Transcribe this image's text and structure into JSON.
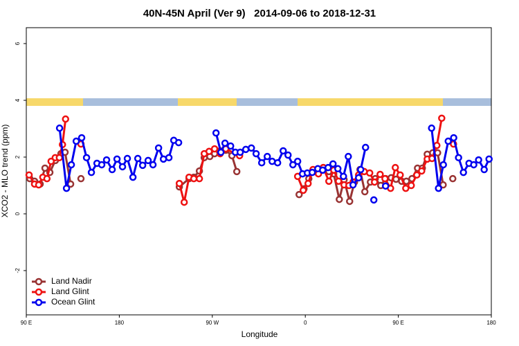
{
  "chart_data": {
    "type": "line",
    "title": "40N-45N April (Ver 9)   2014-09-06 to 2018-12-31",
    "xlabel": "Longitude",
    "ylabel": "XCO2 - MLO trend (ppm)",
    "xlim": [
      90,
      540
    ],
    "ylim": [
      -3.56,
      6.56
    ],
    "xticks": [
      {
        "value": 90,
        "label": "90 E"
      },
      {
        "value": 180,
        "label": "180"
      },
      {
        "value": 270,
        "label": "90 W"
      },
      {
        "value": 360,
        "label": "0"
      },
      {
        "value": 450,
        "label": "90 E"
      },
      {
        "value": 540,
        "label": "180"
      }
    ],
    "yticks": [
      -2,
      0,
      2,
      4,
      6
    ],
    "legend": "bottom-left",
    "series": [
      {
        "name": "Land Nadir",
        "color": "#993333",
        "x": [
          93.4,
          98,
          103.4,
          108.1,
          112.8,
          118.1,
          123.5,
          127.5,
          132.9,
          null,
          142.9,
          null,
          238.1,
          247.5,
          252.1,
          257.5,
          262.2,
          267.6,
          272.2,
          277.6,
          283,
          289,
          293.7,
          null,
          354,
          358.7,
          363.4,
          368.1,
          372.8,
          377.4,
          382.8,
          387.5,
          392.9,
          397.5,
          402.9,
          407.6,
          412.9,
          417.6,
          423,
          427.7,
          433,
          437.7,
          443.1,
          447.8,
          453.2,
          457.8,
          463.2,
          468.6,
          473.2,
          478,
          483.3,
          488,
          493.4,
          null,
          502.7
        ],
        "values": [
          1.24,
          1.15,
          1.05,
          1.61,
          1.46,
          1.88,
          2.12,
          2.17,
          1.05,
          null,
          1.24,
          null,
          0.95,
          1.24,
          1.29,
          1.51,
          1.98,
          2.02,
          2.12,
          2.22,
          2.24,
          2.05,
          1.49,
          null,
          0.68,
          0.88,
          1.24,
          1.49,
          1.54,
          1.63,
          1.49,
          1.41,
          0.51,
          1.2,
          0.44,
          1.12,
          1.56,
          0.78,
          1.12,
          1.24,
          1.0,
          1.24,
          1.27,
          1.22,
          1.15,
          1.15,
          1.24,
          1.61,
          1.61,
          2.1,
          2.15,
          2.15,
          1.02,
          null,
          1.24
        ]
      },
      {
        "name": "Land Glint",
        "color": "#ee1111",
        "x": [
          92.7,
          98,
          102,
          106,
          110,
          114,
          118,
          122,
          125,
          128,
          null,
          142.9,
          null,
          238.1,
          242.8,
          247.5,
          252.1,
          257.5,
          262.2,
          266.9,
          272.2,
          277.6,
          283,
          296.4,
          null,
          352.6,
          358,
          362.7,
          367.4,
          372.7,
          377.4,
          382.8,
          387.5,
          392.2,
          397.5,
          402.2,
          406.2,
          411.6,
          417,
          422.3,
          427,
          432.4,
          437.1,
          442.5,
          447.1,
          451.8,
          457.2,
          462.5,
          467.9,
          472.6,
          478,
          482.6,
          487.3,
          492,
          null,
          503.4
        ],
        "values": [
          1.37,
          1.05,
          1.02,
          1.29,
          1.24,
          1.85,
          1.98,
          1.98,
          2.44,
          3.34,
          null,
          2.46,
          null,
          1.07,
          0.41,
          1.29,
          1.24,
          1.24,
          2.12,
          2.2,
          2.29,
          2.12,
          2.29,
          2.05,
          null,
          1.32,
          0.83,
          1.07,
          1.56,
          1.41,
          1.63,
          1.15,
          1.54,
          1.15,
          1.02,
          1.0,
          1.12,
          1.37,
          1.49,
          1.44,
          1.12,
          1.39,
          1.24,
          0.9,
          1.63,
          1.37,
          0.9,
          1.0,
          1.37,
          1.51,
          1.93,
          1.95,
          2.41,
          3.37,
          null,
          2.46
        ]
      },
      {
        "name": "Ocean Glint",
        "color": "#0000ee",
        "x": [
          122.2,
          128.9,
          133.6,
          138.3,
          143.6,
          148.3,
          153,
          158.4,
          163,
          167.7,
          173.1,
          177.8,
          183.1,
          187.8,
          193.2,
          197.9,
          202.6,
          207.9,
          212.6,
          218,
          222.7,
          228,
          232.7,
          237.4,
          null,
          273.6,
          278.3,
          282.3,
          287.7,
          292.3,
          297,
          302.4,
          307.8,
          312.4,
          317.8,
          323.2,
          327.9,
          333.2,
          338.6,
          343.3,
          348,
          352.6,
          357.3,
          362,
          366.7,
          372.1,
          376.8,
          382.1,
          386.8,
          391.5,
          396.9,
          401.6,
          406.2,
          411.6,
          413.6,
          418.3,
          null,
          426.3,
          null,
          437.7,
          null,
          482.2,
          488.9,
          493.6,
          498.3,
          503.6,
          508.3,
          513,
          518.4,
          523,
          527.7,
          533.1,
          537.8
        ],
        "values": [
          3.02,
          0.9,
          1.73,
          2.56,
          2.68,
          1.98,
          1.46,
          1.78,
          1.73,
          1.9,
          1.56,
          1.93,
          1.66,
          1.95,
          1.29,
          1.95,
          1.71,
          1.88,
          1.73,
          2.32,
          1.93,
          1.98,
          2.59,
          2.51,
          null,
          2.85,
          2.17,
          2.49,
          2.39,
          2.17,
          2.17,
          2.27,
          2.32,
          2.12,
          1.8,
          2.02,
          1.85,
          1.8,
          2.22,
          2.07,
          1.73,
          1.85,
          1.41,
          1.44,
          1.46,
          1.59,
          1.54,
          1.63,
          1.76,
          1.59,
          1.32,
          2.02,
          1.02,
          1.27,
          1.56,
          2.34,
          null,
          0.49,
          null,
          0.98,
          null,
          3.02,
          0.9,
          1.73,
          2.56,
          2.68,
          1.98,
          1.46,
          1.78,
          1.73,
          1.9,
          1.56,
          1.93
        ]
      }
    ]
  }
}
